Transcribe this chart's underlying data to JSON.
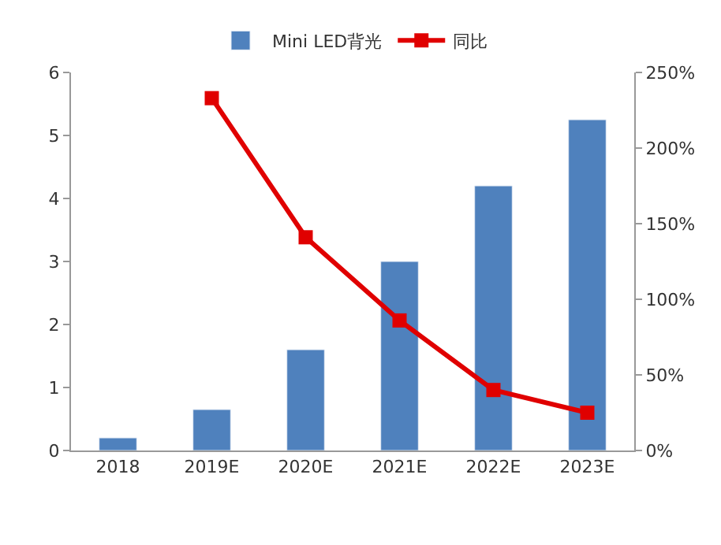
{
  "chart_data": {
    "type": "bar",
    "categories": [
      "2018",
      "2019E",
      "2020E",
      "2021E",
      "2022E",
      "2023E"
    ],
    "series": [
      {
        "name": "Mini LED背光",
        "color": "#4f81bd",
        "values": [
          0.2,
          0.65,
          1.6,
          3.0,
          4.2,
          5.25
        ]
      },
      {
        "name": "同比",
        "type": "line",
        "axis": "y2",
        "color": "#e00000",
        "marker": "square",
        "values": [
          null,
          233,
          141,
          86,
          40,
          25
        ]
      }
    ],
    "ylim": [
      0,
      6
    ],
    "yticks": [
      0,
      1,
      2,
      3,
      4,
      5,
      6
    ],
    "y2lim": [
      0,
      250
    ],
    "y2ticks": [
      {
        "value": 0,
        "label": "0%"
      },
      {
        "value": 50,
        "label": "50%"
      },
      {
        "value": 100,
        "label": "100%"
      },
      {
        "value": 150,
        "label": "150%"
      },
      {
        "value": 200,
        "label": "200%"
      },
      {
        "value": 250,
        "label": "250%"
      }
    ],
    "legend": "top"
  }
}
